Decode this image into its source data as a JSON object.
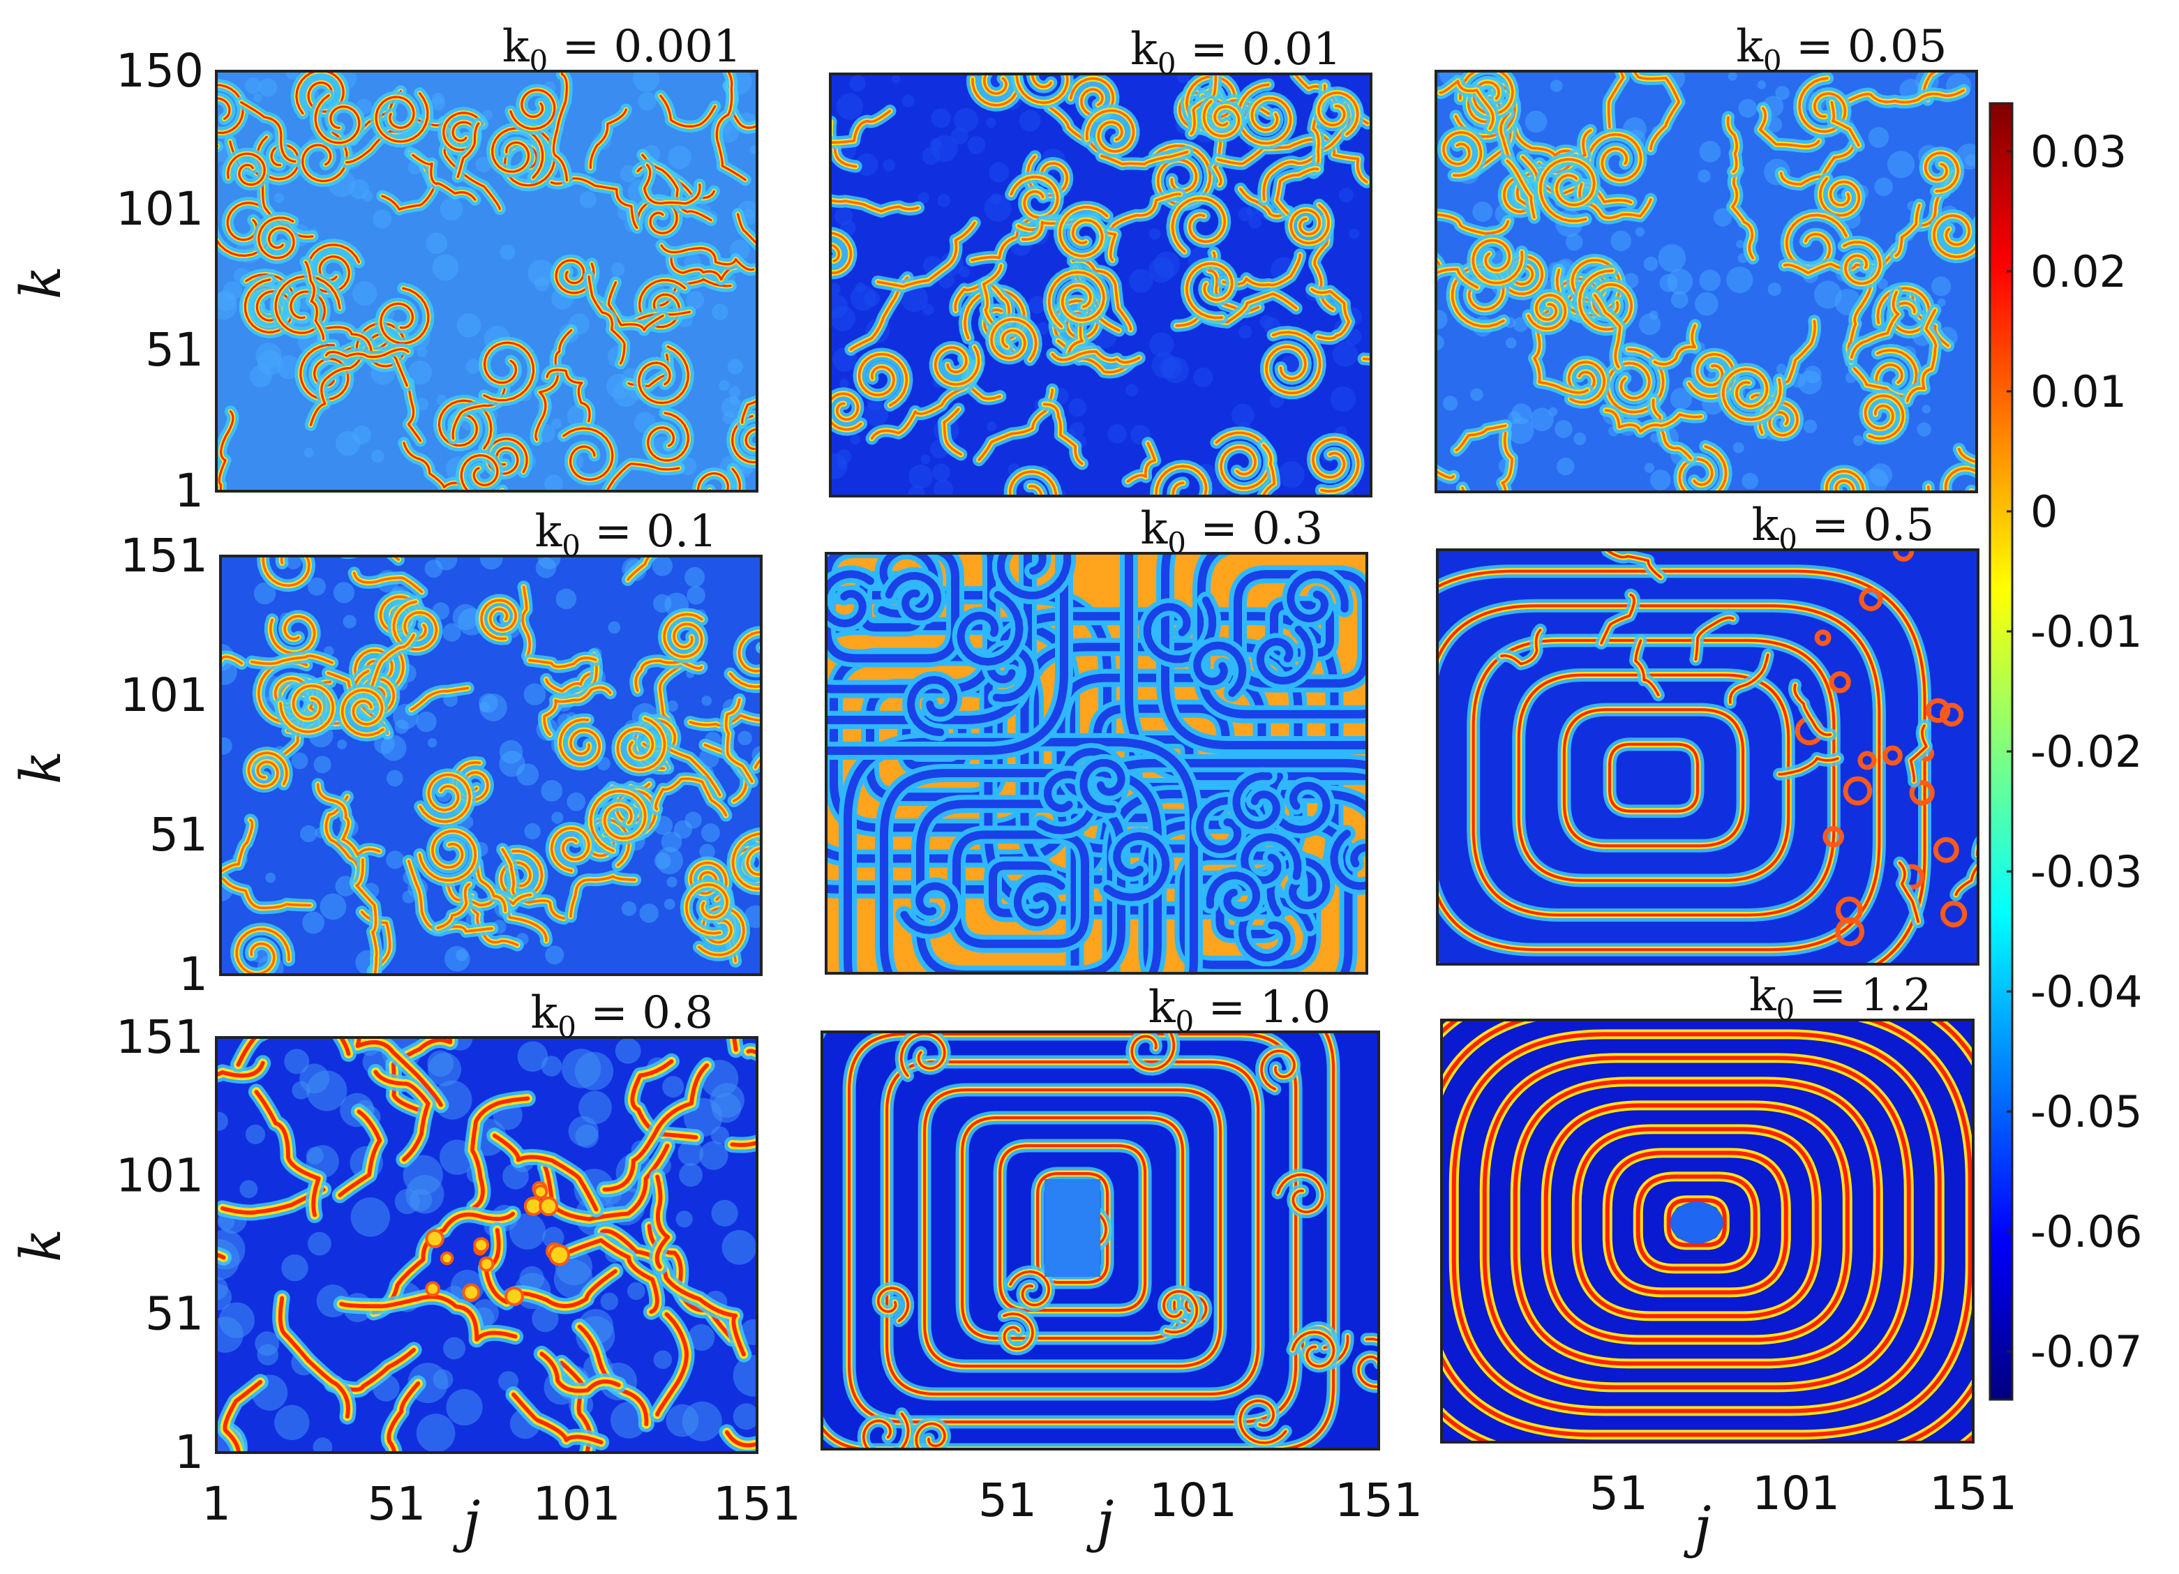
{
  "figure": {
    "xlabel": "j",
    "ylabel": "k"
  },
  "colorbar": {
    "ticks": [
      "0.03",
      "0.02",
      "0.01",
      "0",
      "-0.01",
      "-0.02",
      "-0.03",
      "-0.04",
      "-0.05",
      "-0.06",
      "-0.07"
    ],
    "range": [
      -0.074,
      0.034
    ],
    "colormap": "jet",
    "colors": [
      "#00007f",
      "#0000ff",
      "#007fff",
      "#00ffff",
      "#7fff7f",
      "#ffff00",
      "#ff7f00",
      "#ff0000",
      "#7f0000"
    ]
  },
  "chart_data": [
    {
      "type": "heatmap",
      "title_prefix": "k",
      "title_sub": "0",
      "title_suffix": " = 0.001",
      "param_k0": 0.001,
      "pattern": "fine-spirals",
      "dominant_color": "#3a8cf0",
      "xlim": [
        1,
        151
      ],
      "ylim": [
        1,
        150
      ],
      "x_ticks": [],
      "y_ticks": [
        "150",
        "101",
        "51",
        "1"
      ]
    },
    {
      "type": "heatmap",
      "title_prefix": "k",
      "title_sub": "0",
      "title_suffix": " = 0.01",
      "param_k0": 0.01,
      "pattern": "fine-spirals",
      "dominant_color": "#1030e0",
      "xlim": [
        1,
        151
      ],
      "ylim": [
        1,
        150
      ],
      "x_ticks": [],
      "y_ticks": []
    },
    {
      "type": "heatmap",
      "title_prefix": "k",
      "title_sub": "0",
      "title_suffix": " = 0.05",
      "param_k0": 0.05,
      "pattern": "fine-spirals",
      "dominant_color": "#2a6cf0",
      "xlim": [
        1,
        151
      ],
      "ylim": [
        1,
        150
      ],
      "x_ticks": [],
      "y_ticks": []
    },
    {
      "type": "heatmap",
      "title_prefix": "k",
      "title_sub": "0",
      "title_suffix": " = 0.1",
      "param_k0": 0.1,
      "pattern": "fine-spirals",
      "dominant_color": "#1f55e8",
      "xlim": [
        1,
        151
      ],
      "ylim": [
        1,
        151
      ],
      "x_ticks": [],
      "y_ticks": [
        "151",
        "101",
        "51",
        "1"
      ]
    },
    {
      "type": "heatmap",
      "title_prefix": "k",
      "title_sub": "0",
      "title_suffix": " = 0.3",
      "param_k0": 0.3,
      "pattern": "target-spirals",
      "dominant_color": "#ffa41c",
      "xlim": [
        1,
        151
      ],
      "ylim": [
        1,
        151
      ],
      "x_ticks": [],
      "y_ticks": []
    },
    {
      "type": "heatmap",
      "title_prefix": "k",
      "title_sub": "0",
      "title_suffix": " = 0.5",
      "param_k0": 0.5,
      "pattern": "target-rings",
      "dominant_color": "#1030e0",
      "xlim": [
        1,
        151
      ],
      "ylim": [
        1,
        151
      ],
      "x_ticks": [],
      "y_ticks": []
    },
    {
      "type": "heatmap",
      "title_prefix": "k",
      "title_sub": "0",
      "title_suffix": " = 0.8",
      "param_k0": 0.8,
      "pattern": "broken-waves",
      "dominant_color": "#1030e0",
      "xlim": [
        1,
        151
      ],
      "ylim": [
        1,
        151
      ],
      "x_ticks": [
        "1",
        "51",
        "101",
        "151"
      ],
      "y_ticks": [
        "151",
        "101",
        "51",
        "1"
      ]
    },
    {
      "type": "heatmap",
      "title_prefix": "k",
      "title_sub": "0",
      "title_suffix": " = 1.0",
      "param_k0": 1.0,
      "pattern": "rect-rings",
      "dominant_color": "#0a22d8",
      "xlim": [
        1,
        151
      ],
      "ylim": [
        1,
        151
      ],
      "x_ticks": [
        "51",
        "101",
        "151"
      ],
      "y_ticks": []
    },
    {
      "type": "heatmap",
      "title_prefix": "k",
      "title_sub": "0",
      "title_suffix": " = 1.2",
      "param_k0": 1.2,
      "pattern": "concentric-rings",
      "dominant_color": "#0a1ad0",
      "xlim": [
        1,
        151
      ],
      "ylim": [
        1,
        151
      ],
      "x_ticks": [
        "51",
        "101",
        "151"
      ],
      "y_ticks": []
    }
  ]
}
